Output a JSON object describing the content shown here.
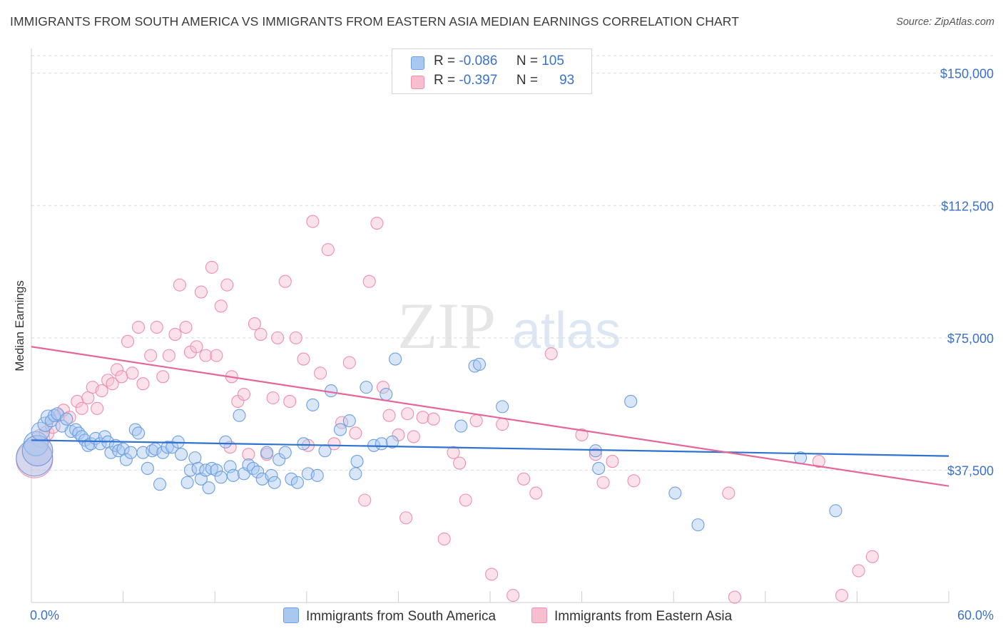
{
  "title": "IMMIGRANTS FROM SOUTH AMERICA VS IMMIGRANTS FROM EASTERN ASIA MEDIAN EARNINGS CORRELATION CHART",
  "source": "Source: ZipAtlas.com",
  "watermark": {
    "zip": "ZIP",
    "atlas": "atlas"
  },
  "legend": {
    "rows": [
      {
        "r_label": "R =",
        "r_value": "-0.086",
        "n_label": "N =",
        "n_value": "105"
      },
      {
        "r_label": "R =",
        "r_value": "-0.397",
        "n_label": "N =",
        "n_value": "93"
      }
    ]
  },
  "bottom_legend": [
    "Immigrants from South America",
    "Immigrants from Eastern Asia"
  ],
  "colors": {
    "blue_fill": "#a9c8f0",
    "blue_stroke": "#6d9fe0",
    "blue_line": "#2f72d0",
    "pink_fill": "#f7bed0",
    "pink_stroke": "#ee8fad",
    "pink_line": "#e5679a",
    "tick_label": "#3b72c8",
    "grid": "#d9d9d9"
  },
  "chart_data": {
    "type": "scatter",
    "xlabel": "",
    "ylabel": "Median Earnings",
    "xlim": [
      0,
      60
    ],
    "ylim": [
      0,
      155000
    ],
    "x_tick_labels": [
      "0.0%",
      "60.0%"
    ],
    "y_ticks": [
      37500,
      75000,
      112500,
      150000
    ],
    "y_tick_labels": [
      "$37,500",
      "$75,000",
      "$112,500",
      "$150,000"
    ],
    "grid": true,
    "legend_position": "top-center",
    "series": [
      {
        "name": "Immigrants from South America",
        "color": "#6d9fe0",
        "trend": {
          "x": [
            0,
            60
          ],
          "y": [
            46000,
            41500
          ]
        },
        "points": [
          [
            0.2,
            41000,
            3
          ],
          [
            0.3,
            45000,
            2
          ],
          [
            0.4,
            43000,
            2.5
          ],
          [
            0.6,
            48500,
            1.5
          ],
          [
            0.9,
            50500,
            1.2
          ],
          [
            1.1,
            52500,
            1.2
          ],
          [
            1.3,
            51500,
            1
          ],
          [
            1.5,
            53000,
            1
          ],
          [
            1.7,
            53500,
            1
          ],
          [
            2.0,
            50000,
            1
          ],
          [
            2.3,
            52000,
            1
          ],
          [
            2.6,
            48500,
            1
          ],
          [
            2.9,
            49000,
            1
          ],
          [
            3.1,
            48000,
            1
          ],
          [
            3.3,
            47000,
            1
          ],
          [
            3.5,
            46000,
            1
          ],
          [
            3.7,
            44500,
            1
          ],
          [
            3.9,
            45000,
            1
          ],
          [
            4.2,
            46500,
            1
          ],
          [
            4.5,
            45000,
            1
          ],
          [
            4.8,
            47000,
            1
          ],
          [
            5.0,
            45500,
            1
          ],
          [
            5.2,
            42500,
            1
          ],
          [
            5.5,
            44500,
            1
          ],
          [
            5.7,
            43000,
            1
          ],
          [
            6.0,
            43500,
            1
          ],
          [
            6.2,
            40500,
            1
          ],
          [
            6.5,
            42500,
            1
          ],
          [
            6.8,
            49000,
            1
          ],
          [
            7.0,
            48000,
            1
          ],
          [
            7.3,
            42500,
            1
          ],
          [
            7.6,
            38000,
            1
          ],
          [
            7.9,
            43000,
            1
          ],
          [
            8.1,
            43500,
            1
          ],
          [
            8.4,
            33500,
            1
          ],
          [
            8.6,
            42500,
            1
          ],
          [
            8.9,
            44000,
            1
          ],
          [
            9.2,
            44000,
            1
          ],
          [
            9.6,
            45500,
            1
          ],
          [
            9.8,
            42000,
            1
          ],
          [
            10.2,
            34000,
            1
          ],
          [
            10.4,
            37500,
            1
          ],
          [
            10.7,
            41000,
            1
          ],
          [
            10.9,
            38000,
            1
          ],
          [
            11.1,
            35000,
            1
          ],
          [
            11.4,
            37500,
            1
          ],
          [
            11.6,
            32500,
            1
          ],
          [
            11.8,
            38000,
            1
          ],
          [
            12.1,
            37500,
            1
          ],
          [
            12.4,
            35500,
            1
          ],
          [
            12.7,
            45500,
            1
          ],
          [
            13.0,
            38500,
            1
          ],
          [
            13.2,
            36000,
            1
          ],
          [
            13.6,
            53000,
            1
          ],
          [
            13.9,
            36500,
            1
          ],
          [
            14.2,
            39000,
            1
          ],
          [
            14.5,
            38000,
            1
          ],
          [
            14.8,
            37000,
            1
          ],
          [
            15.1,
            35000,
            1
          ],
          [
            15.4,
            42500,
            1
          ],
          [
            15.7,
            36000,
            1
          ],
          [
            15.9,
            34000,
            1
          ],
          [
            16.2,
            40500,
            1
          ],
          [
            16.6,
            42500,
            1
          ],
          [
            17.0,
            35000,
            1
          ],
          [
            17.4,
            34000,
            1
          ],
          [
            17.8,
            45000,
            1
          ],
          [
            18.1,
            36500,
            1
          ],
          [
            18.4,
            56000,
            1
          ],
          [
            18.7,
            36000,
            1
          ],
          [
            19.2,
            43000,
            1
          ],
          [
            19.6,
            60000,
            1
          ],
          [
            20.2,
            49000,
            1
          ],
          [
            20.8,
            51500,
            1
          ],
          [
            21.2,
            36500,
            1
          ],
          [
            21.9,
            61000,
            1
          ],
          [
            22.4,
            44500,
            1
          ],
          [
            22.9,
            45000,
            1
          ],
          [
            23.2,
            59000,
            1
          ],
          [
            29.0,
            67000,
            1
          ],
          [
            29.3,
            67500,
            1
          ],
          [
            28.1,
            50000,
            1
          ],
          [
            30.8,
            55500,
            1
          ],
          [
            36.9,
            43000,
            1
          ],
          [
            39.2,
            57000,
            1
          ],
          [
            42.1,
            31000,
            1
          ],
          [
            37.1,
            38000,
            1
          ],
          [
            43.6,
            22000,
            1
          ],
          [
            50.3,
            41000,
            1
          ],
          [
            52.6,
            26000,
            1
          ],
          [
            21.3,
            40000,
            1
          ],
          [
            23.6,
            45500,
            1
          ],
          [
            23.8,
            69000,
            1
          ]
        ]
      },
      {
        "name": "Immigrants from Eastern Asia",
        "color": "#ee8fad",
        "trend": {
          "x": [
            0,
            60
          ],
          "y": [
            72500,
            33000
          ]
        },
        "points": [
          [
            0.2,
            40500,
            3
          ],
          [
            0.4,
            43000,
            2.5
          ],
          [
            0.6,
            46500,
            1.5
          ],
          [
            1.0,
            48000,
            1.2
          ],
          [
            1.4,
            50000,
            1.2
          ],
          [
            1.8,
            53000,
            1
          ],
          [
            2.1,
            54500,
            1
          ],
          [
            2.5,
            52500,
            1
          ],
          [
            3.0,
            57000,
            1
          ],
          [
            3.3,
            55000,
            1
          ],
          [
            3.7,
            58000,
            1
          ],
          [
            4.0,
            61000,
            1
          ],
          [
            4.3,
            55000,
            1
          ],
          [
            4.6,
            60000,
            1
          ],
          [
            5.0,
            63000,
            1
          ],
          [
            5.3,
            62000,
            1
          ],
          [
            5.6,
            66000,
            1
          ],
          [
            5.9,
            64000,
            1
          ],
          [
            6.3,
            74000,
            1
          ],
          [
            6.6,
            65000,
            1
          ],
          [
            7.0,
            78000,
            1
          ],
          [
            7.3,
            62000,
            1
          ],
          [
            7.8,
            70000,
            1
          ],
          [
            8.2,
            78000,
            1
          ],
          [
            8.6,
            64000,
            1
          ],
          [
            9.0,
            70000,
            1
          ],
          [
            9.4,
            76000,
            1
          ],
          [
            9.7,
            90000,
            1
          ],
          [
            10.1,
            78000,
            1
          ],
          [
            10.4,
            71000,
            1
          ],
          [
            10.8,
            72500,
            1
          ],
          [
            11.1,
            88000,
            1
          ],
          [
            11.4,
            70000,
            1
          ],
          [
            11.8,
            95000,
            1
          ],
          [
            12.1,
            70000,
            1
          ],
          [
            12.4,
            84000,
            1
          ],
          [
            12.8,
            90000,
            1
          ],
          [
            13.1,
            64000,
            1
          ],
          [
            13.5,
            57000,
            1
          ],
          [
            13.9,
            59000,
            1
          ],
          [
            14.2,
            42000,
            1
          ],
          [
            14.6,
            79000,
            1
          ],
          [
            15.0,
            76000,
            1
          ],
          [
            15.4,
            42000,
            1
          ],
          [
            15.8,
            58000,
            1
          ],
          [
            16.1,
            75000,
            1
          ],
          [
            16.6,
            91000,
            1
          ],
          [
            16.9,
            57000,
            1
          ],
          [
            17.3,
            75000,
            1
          ],
          [
            17.8,
            69000,
            1
          ],
          [
            18.1,
            44500,
            1
          ],
          [
            18.4,
            108000,
            1
          ],
          [
            18.9,
            65000,
            1
          ],
          [
            19.4,
            100000,
            1
          ],
          [
            19.8,
            45000,
            1
          ],
          [
            20.3,
            51000,
            1
          ],
          [
            20.8,
            68000,
            1
          ],
          [
            21.2,
            48000,
            1
          ],
          [
            21.8,
            29000,
            1
          ],
          [
            22.1,
            91000,
            1
          ],
          [
            22.6,
            107500,
            1
          ],
          [
            23.0,
            61000,
            1
          ],
          [
            23.4,
            53000,
            1
          ],
          [
            24.0,
            47500,
            1
          ],
          [
            24.6,
            53500,
            1
          ],
          [
            25.0,
            47000,
            1
          ],
          [
            25.6,
            52500,
            1
          ],
          [
            26.3,
            52000,
            1
          ],
          [
            27.0,
            18000,
            1
          ],
          [
            27.6,
            42500,
            1
          ],
          [
            28.0,
            39500,
            1
          ],
          [
            28.4,
            29000,
            1
          ],
          [
            29.1,
            51500,
            1
          ],
          [
            30.1,
            8000,
            1
          ],
          [
            30.8,
            50500,
            1
          ],
          [
            31.5,
            2000,
            1
          ],
          [
            32.2,
            35000,
            1
          ],
          [
            33.0,
            31000,
            1
          ],
          [
            34.0,
            70500,
            1
          ],
          [
            36.0,
            47500,
            1
          ],
          [
            38.0,
            40000,
            1
          ],
          [
            39.4,
            34500,
            1
          ],
          [
            45.6,
            31000,
            1
          ],
          [
            46.0,
            1500,
            1
          ],
          [
            51.5,
            40000,
            1
          ],
          [
            53.0,
            2000,
            1
          ],
          [
            54.1,
            9000,
            1
          ],
          [
            55.0,
            13000,
            1
          ],
          [
            37.4,
            34000,
            1
          ],
          [
            36.9,
            42000,
            1
          ],
          [
            24.5,
            24000,
            1
          ],
          [
            13.0,
            44000,
            1
          ]
        ]
      }
    ]
  }
}
